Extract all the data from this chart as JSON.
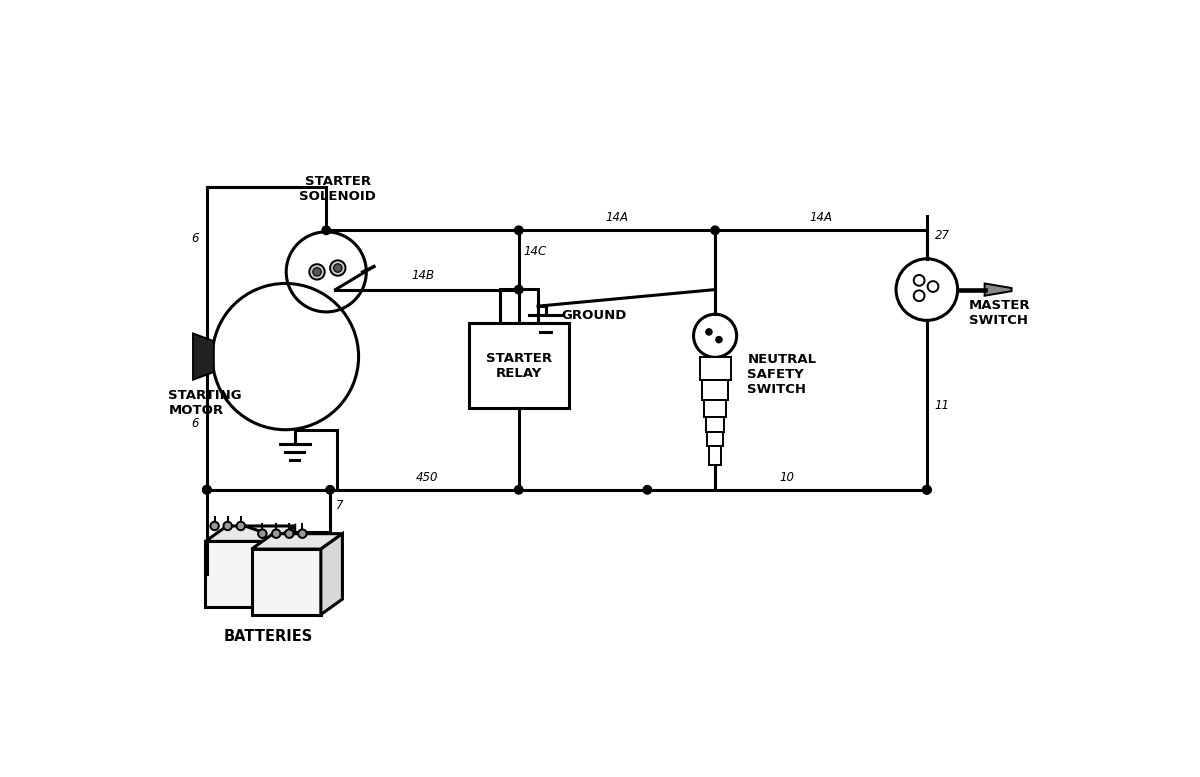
{
  "bg_color": "#ffffff",
  "lw": 2.2,
  "lw_thin": 1.4,
  "labels": {
    "starter_solenoid": "STARTER\nSOLENOID",
    "starting_motor": "STARTING\nMOTOR",
    "starter_relay": "STARTER\nRELAY",
    "ground": "GROUND",
    "neutral_safety_switch": "NEUTRAL\nSAFETY\nSWITCH",
    "master_switch": "MASTER\nSWITCH",
    "batteries": "BATTERIES",
    "14B": "14B",
    "14C": "14C",
    "14A_L": "14A",
    "14A_R": "14A",
    "6_top": "6",
    "6_bot": "6",
    "7": "7",
    "450": "450",
    "10": "10",
    "11": "11",
    "27": "27"
  },
  "fs_big": 9.5,
  "fs_wire": 8.5,
  "dot_r": 0.055
}
